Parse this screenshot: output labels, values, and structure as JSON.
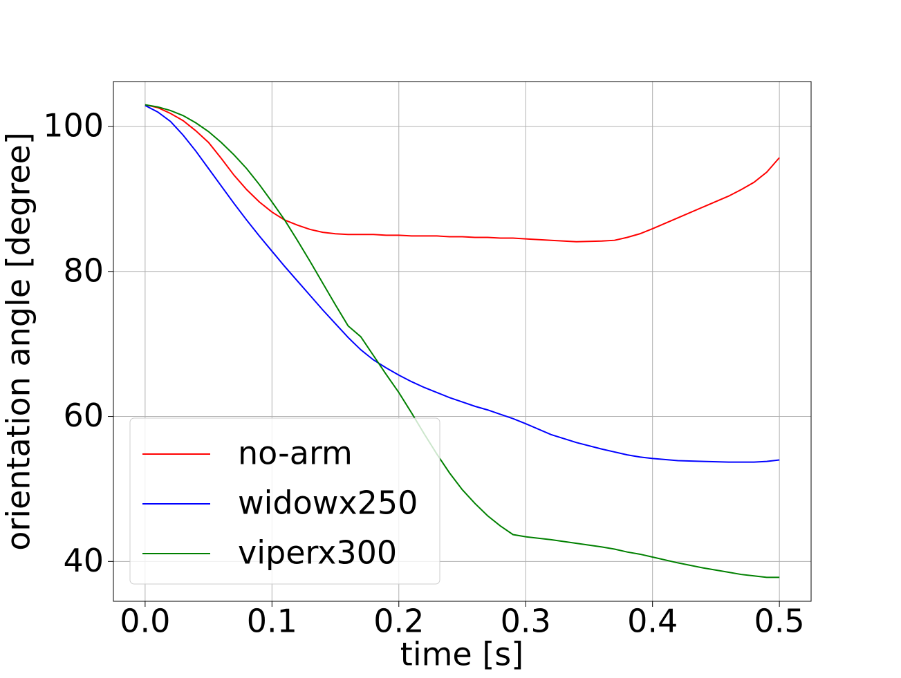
{
  "chart_data": {
    "type": "line",
    "x_label": "time [s]",
    "y_label": "orientation angle [degree]",
    "x": [
      0,
      0.01,
      0.02,
      0.03,
      0.04,
      0.05,
      0.06,
      0.07,
      0.08,
      0.09,
      0.1,
      0.11,
      0.12,
      0.13,
      0.14,
      0.15,
      0.16,
      0.17,
      0.18,
      0.19,
      0.2,
      0.21,
      0.22,
      0.23,
      0.24,
      0.25,
      0.26,
      0.27,
      0.28,
      0.29,
      0.3,
      0.32,
      0.34,
      0.36,
      0.37,
      0.38,
      0.39,
      0.4,
      0.42,
      0.44,
      0.46,
      0.47,
      0.48,
      0.49,
      0.5
    ],
    "series": [
      {
        "name": "no-arm",
        "color": "#ff0000",
        "values": [
          103,
          102.6,
          101.8,
          100.8,
          99.4,
          97.8,
          95.6,
          93.3,
          91.3,
          89.6,
          88.2,
          87.1,
          86.4,
          85.8,
          85.4,
          85.2,
          85.1,
          85.1,
          85.1,
          85.0,
          85.0,
          84.9,
          84.9,
          84.9,
          84.8,
          84.8,
          84.7,
          84.7,
          84.6,
          84.6,
          84.5,
          84.3,
          84.1,
          84.2,
          84.3,
          84.7,
          85.2,
          85.9,
          87.4,
          88.9,
          90.4,
          91.3,
          92.3,
          93.7,
          95.7
        ]
      },
      {
        "name": "widowx250",
        "color": "#0000ff",
        "values": [
          102.9,
          102.0,
          100.7,
          98.8,
          96.6,
          94.2,
          91.8,
          89.4,
          87.1,
          84.9,
          82.8,
          80.7,
          78.7,
          76.7,
          74.7,
          72.8,
          70.9,
          69.2,
          67.8,
          66.7,
          65.7,
          64.8,
          64.0,
          63.3,
          62.6,
          62.0,
          61.4,
          60.9,
          60.3,
          59.7,
          59.0,
          57.5,
          56.4,
          55.5,
          55.1,
          54.7,
          54.4,
          54.2,
          53.9,
          53.8,
          53.7,
          53.7,
          53.7,
          53.8,
          54.0
        ]
      },
      {
        "name": "viperx300",
        "color": "#008000",
        "values": [
          103,
          102.7,
          102.2,
          101.5,
          100.5,
          99.3,
          97.8,
          96.1,
          94.2,
          92.0,
          89.6,
          87.1,
          84.3,
          81.4,
          78.4,
          75.4,
          72.5,
          71.0,
          68.4,
          65.8,
          63.3,
          60.5,
          57.6,
          54.8,
          52.2,
          49.9,
          48.0,
          46.3,
          44.9,
          43.7,
          43.4,
          43.0,
          42.5,
          42.0,
          41.7,
          41.3,
          41.0,
          40.6,
          39.8,
          39.1,
          38.5,
          38.2,
          38.0,
          37.8,
          37.8
        ]
      }
    ],
    "xlim": [
      -0.025,
      0.525
    ],
    "ylim": [
      34.5,
      106.2
    ],
    "xticks": [
      {
        "value": 0,
        "label": "0.0"
      },
      0.1,
      0.2,
      0.3,
      0.4,
      0.5
    ],
    "yticks": [
      40,
      60,
      80,
      100
    ],
    "grid": true,
    "legend": "lower left"
  }
}
